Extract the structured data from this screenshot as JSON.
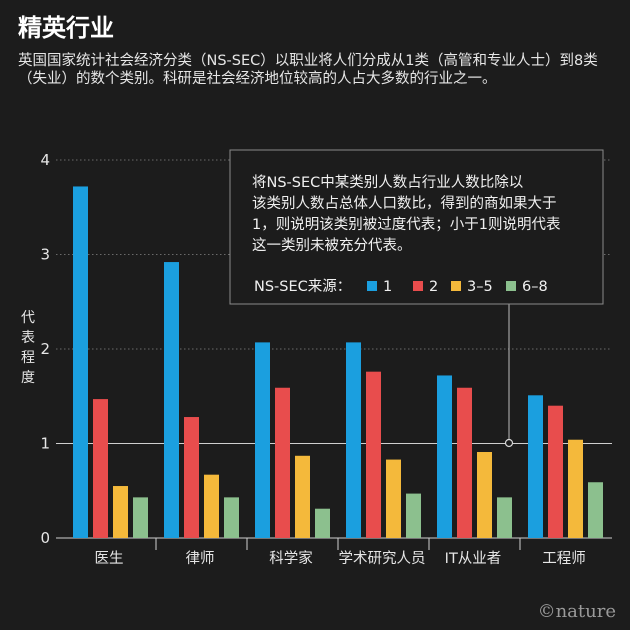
{
  "title": "精英行业",
  "subtitle": "英国国家统计社会经济分类（NS-SEC）以职业将人们分成从1类（高管和专业人士）到8类（失业）的数个类别。科研是社会经济地位较高的人占大多数的行业之一。",
  "credit": "©nature",
  "colors": {
    "s1": "#1b9fdf",
    "s2": "#e84d4d",
    "s3": "#f4b93b",
    "s4": "#8cc08e"
  },
  "chart_data": {
    "type": "bar",
    "ylabel": "代表程度",
    "ylim": [
      0,
      4
    ],
    "yticks": [
      "0",
      "1",
      "2",
      "3",
      "4"
    ],
    "categories": [
      "医生",
      "律师",
      "科学家",
      "学术研究人员",
      "IT从业者",
      "工程师"
    ],
    "series": [
      {
        "name": "1",
        "values": [
          3.72,
          2.92,
          2.07,
          2.07,
          1.72,
          1.51
        ]
      },
      {
        "name": "2",
        "values": [
          1.47,
          1.28,
          1.59,
          1.76,
          1.59,
          1.4
        ]
      },
      {
        "name": "3–5",
        "values": [
          0.55,
          0.67,
          0.87,
          0.83,
          0.91,
          1.04
        ]
      },
      {
        "name": "6–8",
        "values": [
          0.43,
          0.43,
          0.31,
          0.47,
          0.43,
          0.59
        ]
      }
    ],
    "annotation": "将NS-SEC中某类别人数占行业人数比除以该类别人数占总体人口数比，得到的商如果大于1，则说明该类别被过度代表；小于1则说明代表这一类别未被充分代表。",
    "legend_title": "NS-SEC来源：",
    "legend_position": "top-right",
    "grid": true
  }
}
